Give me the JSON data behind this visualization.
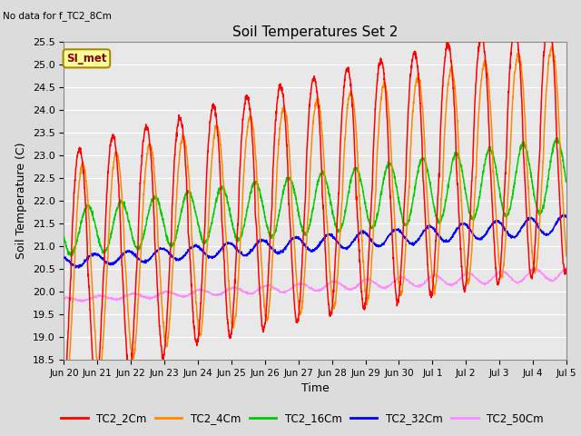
{
  "title": "Soil Temperatures Set 2",
  "subtitle": "No data for f_TC2_8Cm",
  "xlabel": "Time",
  "ylabel": "Soil Temperature (C)",
  "ylim": [
    18.5,
    25.5
  ],
  "annotation_label": "SI_met",
  "background_color": "#dcdcdc",
  "plot_bg_color": "#e8e8e8",
  "line_colors": {
    "TC2_2Cm": "#ff0000",
    "TC2_4Cm": "#ff8800",
    "TC2_16Cm": "#00cc00",
    "TC2_32Cm": "#0000ff",
    "TC2_50Cm": "#ff88ff"
  },
  "x_tick_labels": [
    "Jun 20",
    "Jun 21",
    "Jun 22",
    "Jun 23",
    "Jun 24",
    "Jun 25",
    "Jun 26",
    "Jun 27",
    "Jun 28",
    "Jun 29",
    "Jun 30",
    "Jul 1",
    "Jul 2",
    "Jul 3",
    "Jul 4",
    "Jul 5"
  ],
  "num_days": 15,
  "pts_per_day": 144
}
